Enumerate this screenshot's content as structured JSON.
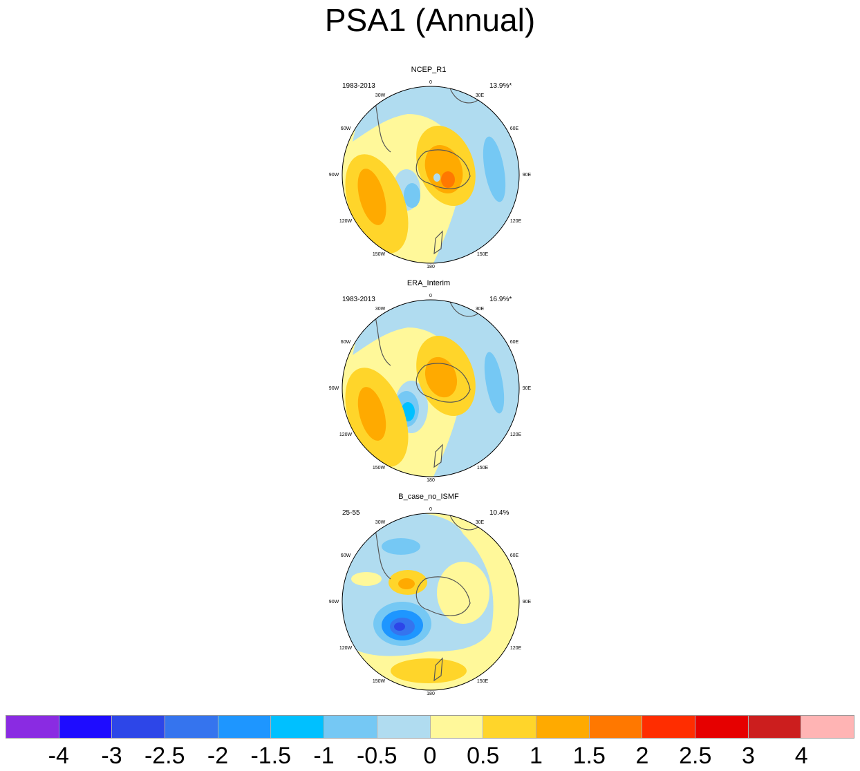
{
  "title": "PSA1 (Annual)",
  "panels": [
    {
      "title": "NCEP_R1",
      "period": "1983-2013",
      "variance": "13.9%*"
    },
    {
      "title": "ERA_Interim",
      "period": "1983-2013",
      "variance": "16.9%*"
    },
    {
      "title": "B_case_no_ISMF",
      "period": "25-55",
      "variance": "10.4%"
    }
  ],
  "longitude_labels": [
    "0",
    "30E",
    "60E",
    "90E",
    "120E",
    "150E",
    "180",
    "150W",
    "120W",
    "90W",
    "60W",
    "30W"
  ],
  "colorbar": {
    "colors": [
      "#8a2be2",
      "#1e0cff",
      "#2d46e8",
      "#3574ee",
      "#1e96ff",
      "#00c0ff",
      "#75c8f4",
      "#b0dcf0",
      "#fff89a",
      "#ffd52a",
      "#ffaa00",
      "#ff7800",
      "#ff2d00",
      "#e60000",
      "#cc1e1e",
      "#ffb4b4"
    ],
    "labels": [
      "-4",
      "-3",
      "-2.5",
      "-2",
      "-1.5",
      "-1",
      "-0.5",
      "0",
      "0.5",
      "1",
      "1.5",
      "2",
      "2.5",
      "3",
      "4"
    ]
  }
}
